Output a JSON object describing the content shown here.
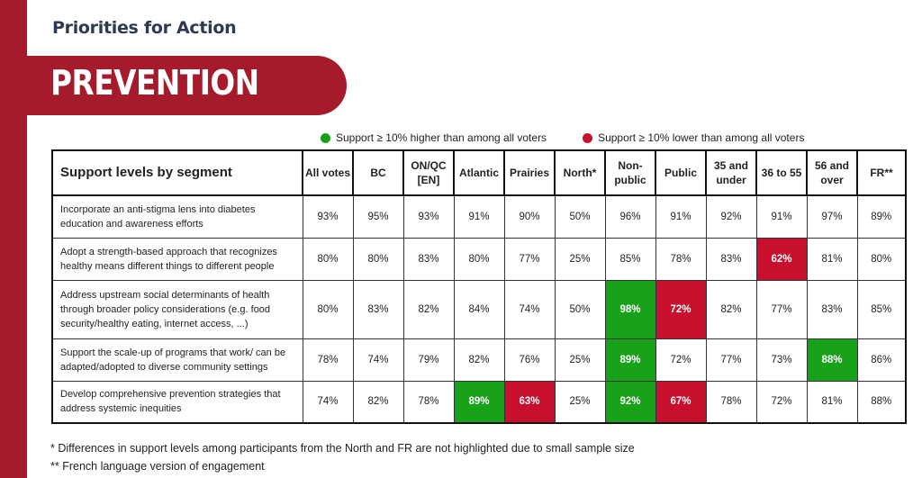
{
  "kicker": "Priorities for Action",
  "banner_title": "PREVENTION",
  "colors": {
    "brand": "#a51b2c",
    "higher": "#17a21a",
    "lower": "#c8102e"
  },
  "legend": {
    "higher": "Support ≥ 10% higher than among all voters",
    "lower": "Support ≥ 10% lower than among all voters"
  },
  "table": {
    "title": "Support levels by segment",
    "columns": [
      "All votes",
      "BC",
      "ON/QC [EN]",
      "Atlantic",
      "Prairies",
      "North*",
      "Non-public",
      "Public",
      "35 and under",
      "36 to 55",
      "56 and over",
      "FR**"
    ],
    "rows": [
      {
        "label": "Incorporate an anti-stigma lens into diabetes education and awareness efforts",
        "values": [
          "93%",
          "95%",
          "93%",
          "91%",
          "90%",
          "50%",
          "96%",
          "91%",
          "92%",
          "91%",
          "97%",
          "89%"
        ],
        "flags": [
          "",
          "",
          "",
          "",
          "",
          "",
          "",
          "",
          "",
          "",
          "",
          ""
        ]
      },
      {
        "label": "Adopt a strength-based approach that recognizes healthy means different things to different people",
        "values": [
          "80%",
          "80%",
          "83%",
          "80%",
          "77%",
          "25%",
          "85%",
          "78%",
          "83%",
          "62%",
          "81%",
          "80%"
        ],
        "flags": [
          "",
          "",
          "",
          "",
          "",
          "",
          "",
          "",
          "",
          "lower",
          "",
          ""
        ]
      },
      {
        "label": "Address upstream social determinants of health through broader policy considerations (e.g. food security/healthy eating, internet access, ...)",
        "values": [
          "80%",
          "83%",
          "82%",
          "84%",
          "74%",
          "50%",
          "98%",
          "72%",
          "82%",
          "77%",
          "83%",
          "85%"
        ],
        "flags": [
          "",
          "",
          "",
          "",
          "",
          "",
          "higher",
          "lower",
          "",
          "",
          "",
          ""
        ]
      },
      {
        "label": "Support the scale-up of programs that work/ can be adapted/adopted to diverse community settings",
        "values": [
          "78%",
          "74%",
          "79%",
          "82%",
          "76%",
          "25%",
          "89%",
          "72%",
          "77%",
          "73%",
          "88%",
          "86%"
        ],
        "flags": [
          "",
          "",
          "",
          "",
          "",
          "",
          "higher",
          "",
          "",
          "",
          "higher",
          ""
        ]
      },
      {
        "label": "Develop comprehensive prevention strategies that address systemic inequities",
        "values": [
          "74%",
          "82%",
          "78%",
          "89%",
          "63%",
          "25%",
          "92%",
          "67%",
          "78%",
          "72%",
          "81%",
          "88%"
        ],
        "flags": [
          "",
          "",
          "",
          "higher",
          "lower",
          "",
          "higher",
          "lower",
          "",
          "",
          "",
          ""
        ]
      }
    ]
  },
  "notes": [
    "* Differences in support levels among participants from the North and FR are not highlighted due to small sample size",
    "** French language version of engagement"
  ]
}
